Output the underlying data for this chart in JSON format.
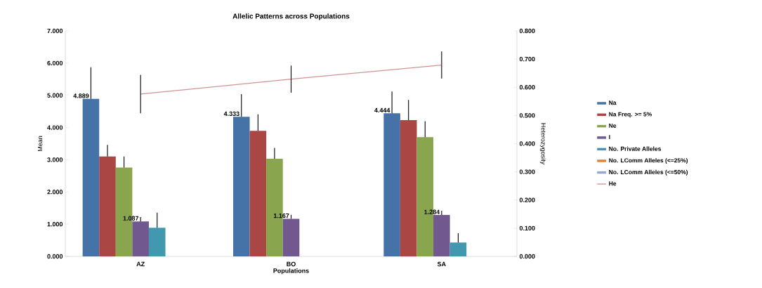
{
  "chart_data": {
    "type": "bar",
    "title": "Allelic Patterns across Populations",
    "xlabel": "Populations",
    "ylabel": "Mean",
    "y2label": "Heterozygosity",
    "categories": [
      "AZ",
      "BO",
      "SA"
    ],
    "ylim": [
      0,
      7
    ],
    "yticks": [
      {
        "value": 0,
        "label": "0.000"
      },
      {
        "value": 1,
        "label": "1.000"
      },
      {
        "value": 2,
        "label": "2.000"
      },
      {
        "value": 3,
        "label": "3.000"
      },
      {
        "value": 4,
        "label": "4.000"
      },
      {
        "value": 5,
        "label": "5.000"
      },
      {
        "value": 6,
        "label": "6.000"
      },
      {
        "value": 7,
        "label": "7.000"
      }
    ],
    "y2lim": [
      0,
      0.8
    ],
    "y2ticks": [
      {
        "value": 0,
        "label": "0.000"
      },
      {
        "value": 0.1,
        "label": "0.100"
      },
      {
        "value": 0.2,
        "label": "0.200"
      },
      {
        "value": 0.3,
        "label": "0.300"
      },
      {
        "value": 0.4,
        "label": "0.400"
      },
      {
        "value": 0.5,
        "label": "0.500"
      },
      {
        "value": 0.6,
        "label": "0.600"
      },
      {
        "value": 0.7,
        "label": "0.700"
      },
      {
        "value": 0.8,
        "label": "0.800"
      }
    ],
    "legend": "right",
    "series": [
      {
        "name": "Na",
        "color": "#4572a7",
        "values": [
          4.889,
          4.333,
          4.444
        ],
        "value_labels": [
          "4.889",
          "4.333",
          "4.444"
        ],
        "errors": [
          [
            4.889,
            5.87
          ],
          [
            4.333,
            5.04
          ],
          [
            4.444,
            5.12
          ]
        ]
      },
      {
        "name": "Na Freq. >= 5%",
        "color": "#aa4643",
        "values": [
          3.1,
          3.9,
          4.23
        ],
        "errors": [
          [
            3.1,
            3.46
          ],
          [
            3.9,
            4.41
          ],
          [
            4.23,
            4.86
          ]
        ]
      },
      {
        "name": "Ne",
        "color": "#89a54e",
        "values": [
          2.76,
          3.03,
          3.7
        ],
        "errors": [
          [
            2.76,
            3.1
          ],
          [
            3.03,
            3.37
          ],
          [
            3.7,
            4.2
          ]
        ]
      },
      {
        "name": "I",
        "color": "#71588f",
        "values": [
          1.087,
          1.167,
          1.284
        ],
        "value_labels": [
          "1.087",
          "1.167",
          "1.284"
        ],
        "errors": [
          [
            1.087,
            1.22
          ],
          [
            1.167,
            1.29
          ],
          [
            1.284,
            1.42
          ]
        ]
      },
      {
        "name": "No. Private Alleles",
        "color": "#4198af",
        "values": [
          0.89,
          0,
          0.43
        ],
        "errors": [
          [
            0.89,
            1.36
          ],
          null,
          [
            0.43,
            0.72
          ]
        ]
      },
      {
        "name": "No. LComm Alleles (<=25%)",
        "color": "#db843d",
        "values": [
          0,
          0,
          0
        ]
      },
      {
        "name": "No. LComm Alleles (<=50%)",
        "color": "#93a9cf",
        "values": [
          0,
          0,
          0
        ]
      },
      {
        "name": "He",
        "type": "line",
        "axis": "y2",
        "color": "#d09393",
        "values": [
          0.576,
          0.629,
          0.679
        ],
        "errors": [
          0.068,
          0.048,
          0.048
        ]
      }
    ]
  }
}
